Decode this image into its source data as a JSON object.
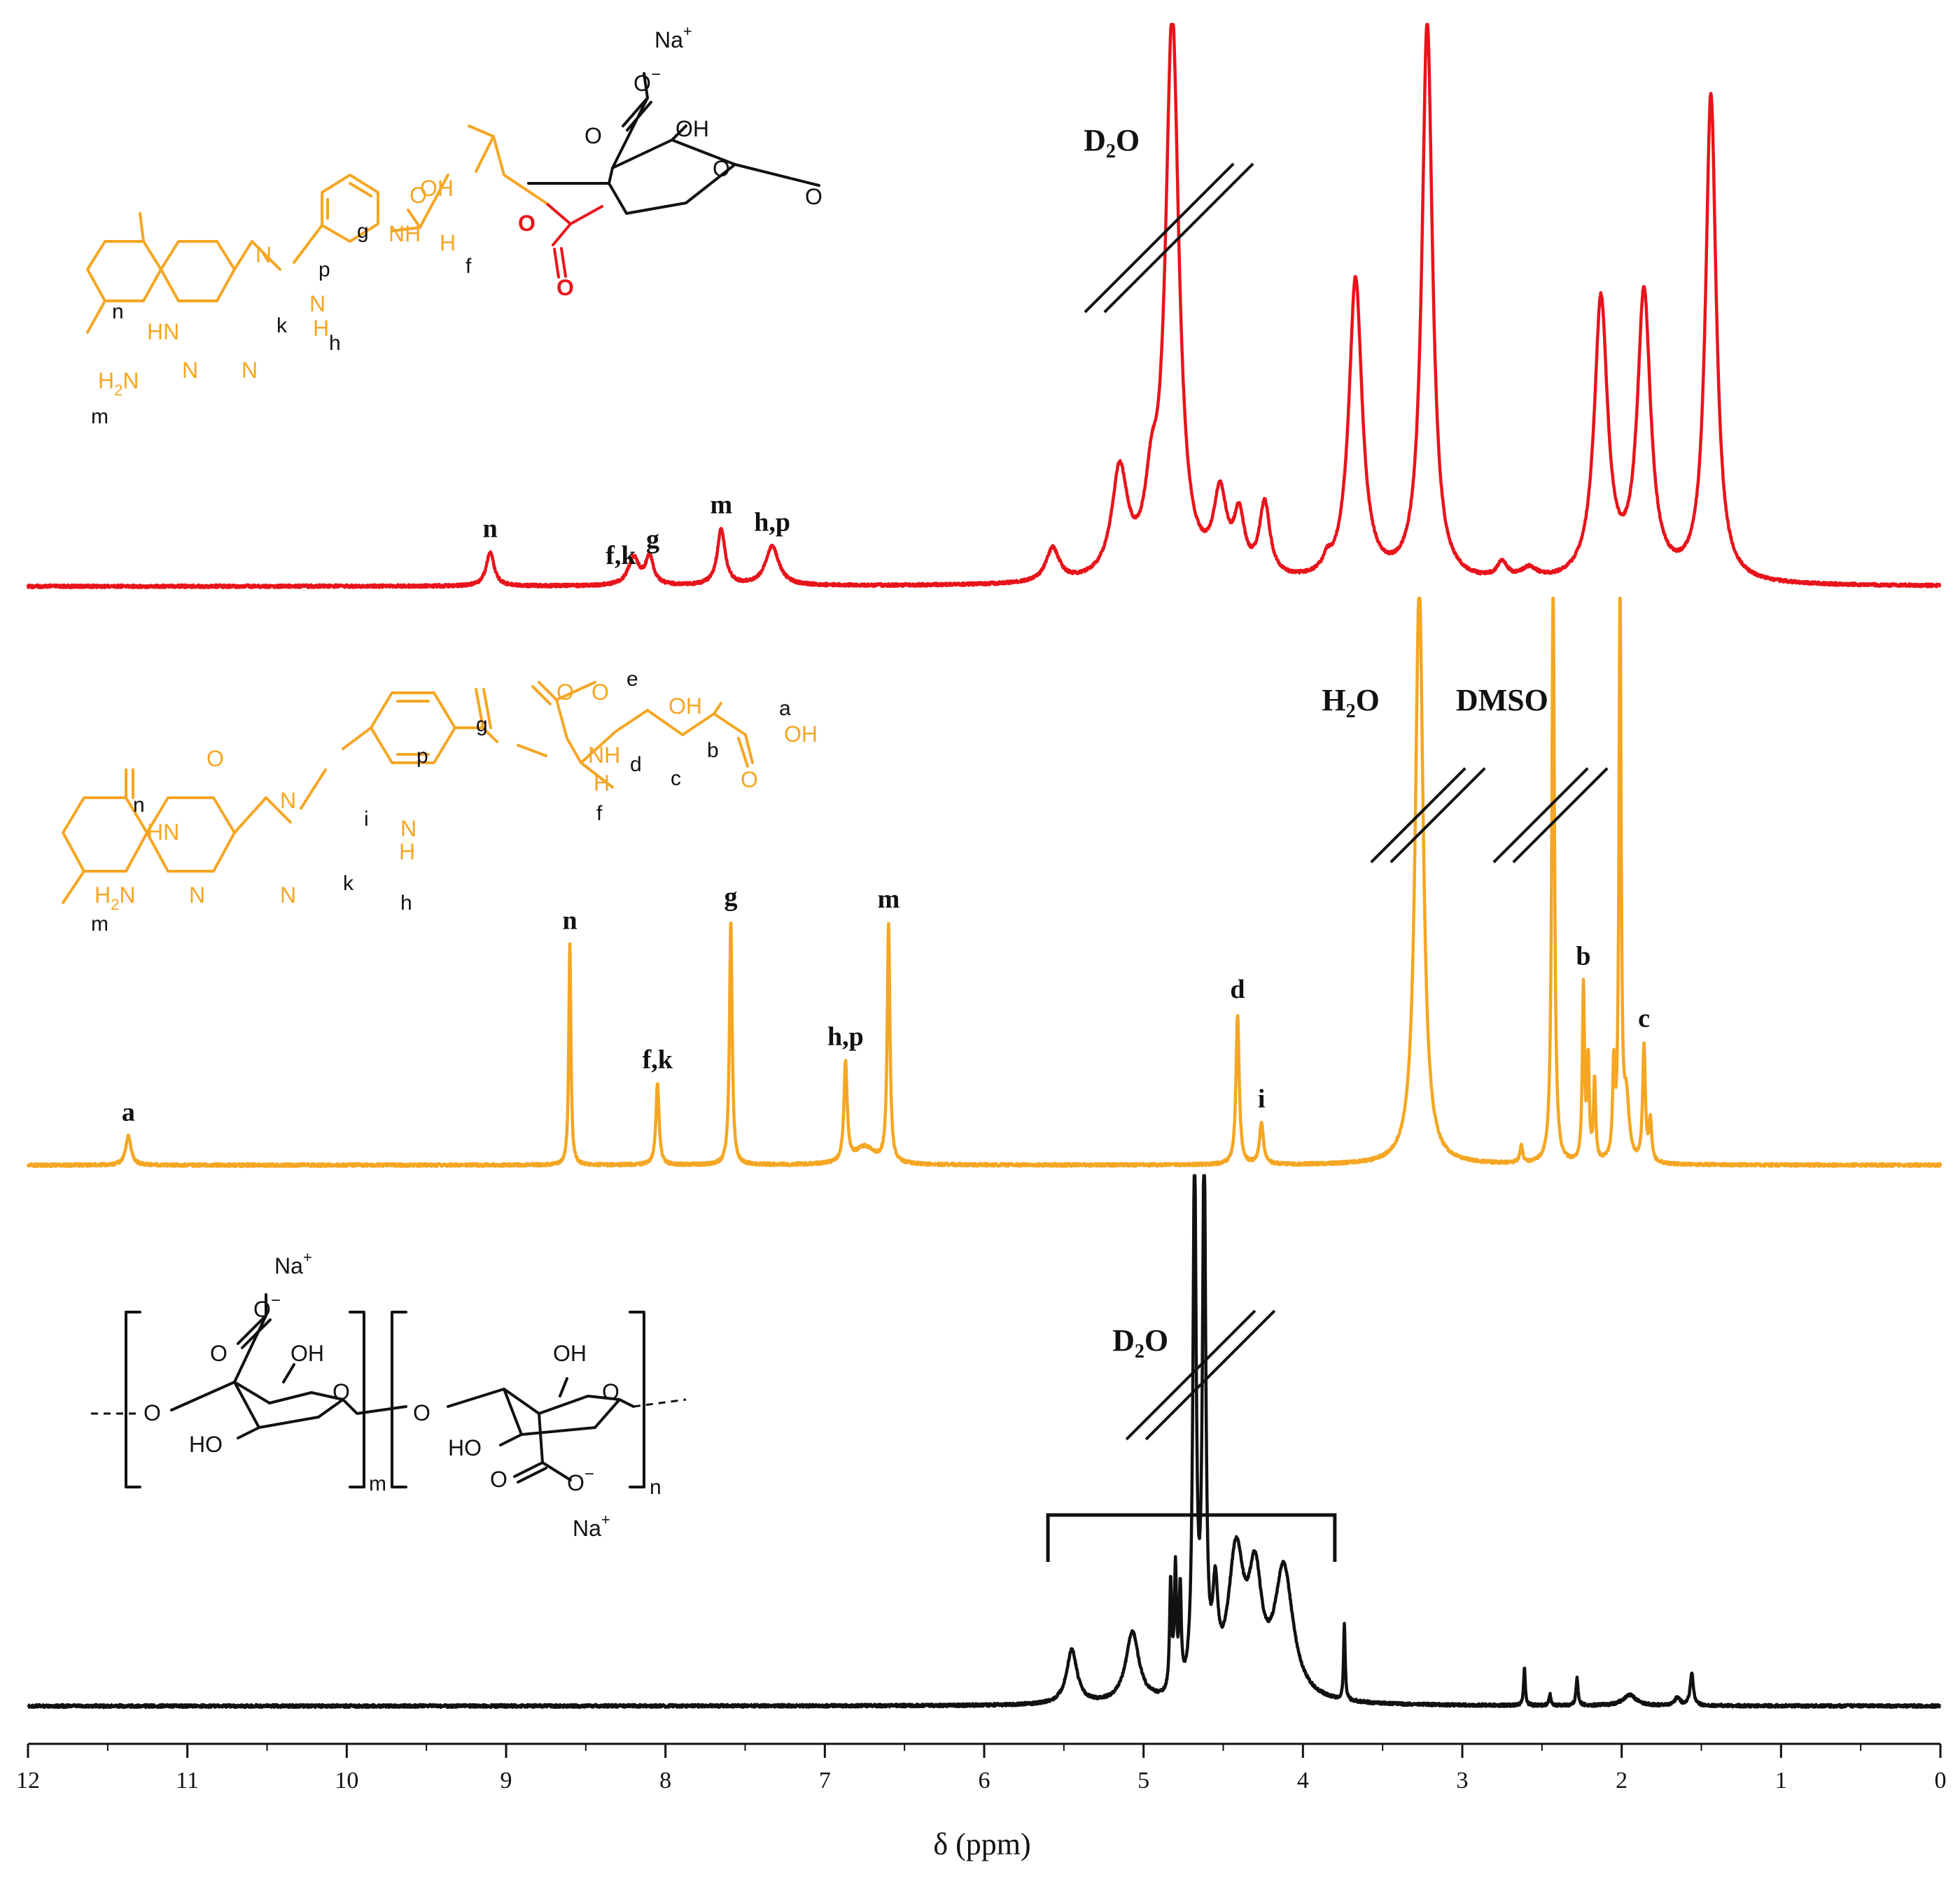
{
  "chart_data": {
    "type": "line",
    "xlabel": "δ (ppm)",
    "xlim": [
      12,
      0
    ],
    "x_ticks": [
      12,
      11,
      10,
      9,
      8,
      7,
      6,
      5,
      4,
      3,
      2,
      1,
      0
    ],
    "grid": false,
    "series": [
      {
        "color": "#e8141b",
        "baseline": 0,
        "peaks": [
          {
            "ppm": 9.1,
            "height": 0.06,
            "width": 0.03
          },
          {
            "ppm": 8.2,
            "height": 0.05,
            "width": 0.04
          },
          {
            "ppm": 8.1,
            "height": 0.05,
            "width": 0.03
          },
          {
            "ppm": 7.65,
            "height": 0.1,
            "width": 0.03
          },
          {
            "ppm": 7.33,
            "height": 0.07,
            "width": 0.05
          },
          {
            "ppm": 5.57,
            "height": 0.06,
            "width": 0.05
          },
          {
            "ppm": 5.15,
            "height": 0.19,
            "width": 0.06
          },
          {
            "ppm": 4.95,
            "height": 0.12,
            "width": 0.05
          },
          {
            "ppm": 4.82,
            "height": 1.0,
            "width": 0.05
          },
          {
            "ppm": 4.52,
            "height": 0.14,
            "width": 0.05
          },
          {
            "ppm": 4.4,
            "height": 0.1,
            "width": 0.04
          },
          {
            "ppm": 4.24,
            "height": 0.13,
            "width": 0.04
          },
          {
            "ppm": 3.85,
            "height": 0.02,
            "width": 0.03
          },
          {
            "ppm": 3.67,
            "height": 0.54,
            "width": 0.05
          },
          {
            "ppm": 3.22,
            "height": 1.0,
            "width": 0.04
          },
          {
            "ppm": 2.75,
            "height": 0.03,
            "width": 0.04
          },
          {
            "ppm": 2.58,
            "height": 0.02,
            "width": 0.06
          },
          {
            "ppm": 2.13,
            "height": 0.5,
            "width": 0.05
          },
          {
            "ppm": 1.86,
            "height": 0.51,
            "width": 0.05
          },
          {
            "ppm": 1.44,
            "height": 0.87,
            "width": 0.04
          }
        ],
        "labels": [
          {
            "text": "n",
            "ppm": 9.1
          },
          {
            "text": "f,k",
            "ppm": 8.28
          },
          {
            "text": "g",
            "ppm": 8.08
          },
          {
            "text": "m",
            "ppm": 7.65
          },
          {
            "text": "h,p",
            "ppm": 7.33
          }
        ]
      },
      {
        "color": "#f5a623",
        "baseline": 0,
        "peaks": [
          {
            "ppm": 11.37,
            "height": 0.05,
            "width": 0.02
          },
          {
            "ppm": 8.6,
            "height": 0.38,
            "width": 0.008
          },
          {
            "ppm": 8.05,
            "height": 0.14,
            "width": 0.012
          },
          {
            "ppm": 7.59,
            "height": 0.42,
            "width": 0.01
          },
          {
            "ppm": 6.87,
            "height": 0.17,
            "width": 0.012
          },
          {
            "ppm": 6.75,
            "height": 0.03,
            "width": 0.08
          },
          {
            "ppm": 6.6,
            "height": 0.41,
            "width": 0.01
          },
          {
            "ppm": 4.41,
            "height": 0.26,
            "width": 0.012
          },
          {
            "ppm": 4.26,
            "height": 0.07,
            "width": 0.015
          },
          {
            "ppm": 3.27,
            "height": 1.0,
            "width": 0.03
          },
          {
            "ppm": 2.63,
            "height": 0.03,
            "width": 0.01
          },
          {
            "ppm": 2.43,
            "height": 1.0,
            "width": 0.01
          },
          {
            "ppm": 2.24,
            "height": 0.3,
            "width": 0.008
          },
          {
            "ppm": 2.21,
            "height": 0.17,
            "width": 0.008
          },
          {
            "ppm": 2.17,
            "height": 0.14,
            "width": 0.008
          },
          {
            "ppm": 2.05,
            "height": 0.15,
            "width": 0.008
          },
          {
            "ppm": 2.01,
            "height": 1.0,
            "width": 0.008
          },
          {
            "ppm": 1.97,
            "height": 0.1,
            "width": 0.02
          },
          {
            "ppm": 1.86,
            "height": 0.2,
            "width": 0.01
          },
          {
            "ppm": 1.82,
            "height": 0.07,
            "width": 0.01
          }
        ],
        "labels": [
          {
            "text": "a",
            "ppm": 11.37
          },
          {
            "text": "n",
            "ppm": 8.6
          },
          {
            "text": "f,k",
            "ppm": 8.05
          },
          {
            "text": "g",
            "ppm": 7.59
          },
          {
            "text": "h,p",
            "ppm": 6.87
          },
          {
            "text": "m",
            "ppm": 6.6
          },
          {
            "text": "d",
            "ppm": 4.41
          },
          {
            "text": "i",
            "ppm": 4.26
          },
          {
            "text": "b",
            "ppm": 2.24
          },
          {
            "text": "c",
            "ppm": 1.86
          }
        ]
      },
      {
        "color": "#111111",
        "baseline": 0,
        "peaks": [
          {
            "ppm": 5.45,
            "height": 0.1,
            "width": 0.04
          },
          {
            "ppm": 5.07,
            "height": 0.13,
            "width": 0.05
          },
          {
            "ppm": 4.83,
            "height": 0.2,
            "width": 0.008
          },
          {
            "ppm": 4.8,
            "height": 0.22,
            "width": 0.008
          },
          {
            "ppm": 4.77,
            "height": 0.18,
            "width": 0.008
          },
          {
            "ppm": 4.68,
            "height": 1.0,
            "width": 0.012
          },
          {
            "ppm": 4.62,
            "height": 1.0,
            "width": 0.012
          },
          {
            "ppm": 4.55,
            "height": 0.16,
            "width": 0.02
          },
          {
            "ppm": 4.42,
            "height": 0.26,
            "width": 0.06
          },
          {
            "ppm": 4.3,
            "height": 0.2,
            "width": 0.05
          },
          {
            "ppm": 4.12,
            "height": 0.24,
            "width": 0.07
          },
          {
            "ppm": 3.74,
            "height": 0.14,
            "width": 0.006
          },
          {
            "ppm": 2.61,
            "height": 0.07,
            "width": 0.006
          },
          {
            "ppm": 2.45,
            "height": 0.02,
            "width": 0.008
          },
          {
            "ppm": 2.28,
            "height": 0.05,
            "width": 0.008
          },
          {
            "ppm": 1.95,
            "height": 0.02,
            "width": 0.05
          },
          {
            "ppm": 1.65,
            "height": 0.015,
            "width": 0.02
          },
          {
            "ppm": 1.56,
            "height": 0.06,
            "width": 0.012
          }
        ],
        "labels": []
      }
    ],
    "annotations": [
      {
        "name": "D2O",
        "main": "D",
        "sub": "2",
        "rest": "O",
        "series": 0,
        "ppm": 5.2
      },
      {
        "name": "H2O",
        "main": "H",
        "sub": "2",
        "rest": "O",
        "series": 1,
        "ppm": 3.7
      },
      {
        "name": "DMSO",
        "main": "DMSO",
        "sub": "",
        "rest": "",
        "series": 1,
        "ppm": 2.75
      },
      {
        "name": "D2O",
        "main": "D",
        "sub": "2",
        "rest": "O",
        "series": 2,
        "ppm": 5.02
      }
    ],
    "bracket": {
      "from_ppm": 5.6,
      "to_ppm": 3.8,
      "series": 2
    }
  },
  "structures": {
    "conjugate": {
      "color_folate": "#f5a623",
      "color_linkage": "#e8141b",
      "atoms": [
        "Na",
        "+",
        "O",
        "−",
        "O",
        "OH",
        "O",
        "O",
        "O",
        "OH",
        "NH",
        "H",
        "f",
        "O",
        "O",
        "p",
        "g",
        "N",
        "H",
        "h",
        "N",
        "k",
        "N",
        "HN",
        "n",
        "H",
        "2",
        "N",
        "N",
        "m"
      ]
    },
    "folate": {
      "color": "#f5a623",
      "atoms": [
        "e",
        "OH",
        "O",
        "a",
        "OH",
        "b",
        "O",
        "d",
        "c",
        "NH",
        "H",
        "f",
        "O",
        "p",
        "g",
        "i",
        "N",
        "H",
        "h",
        "N",
        "k",
        "N",
        "HN",
        "n",
        "O",
        "H",
        "2",
        "N",
        "N",
        "m"
      ]
    },
    "alginate": {
      "atoms": [
        "Na",
        "+",
        "O",
        "−",
        "O",
        "OH",
        "O",
        "O",
        "HO",
        "m",
        "O",
        "OH",
        "O",
        "HO",
        "O",
        "O",
        "−",
        "n",
        "Na",
        "+"
      ]
    }
  }
}
